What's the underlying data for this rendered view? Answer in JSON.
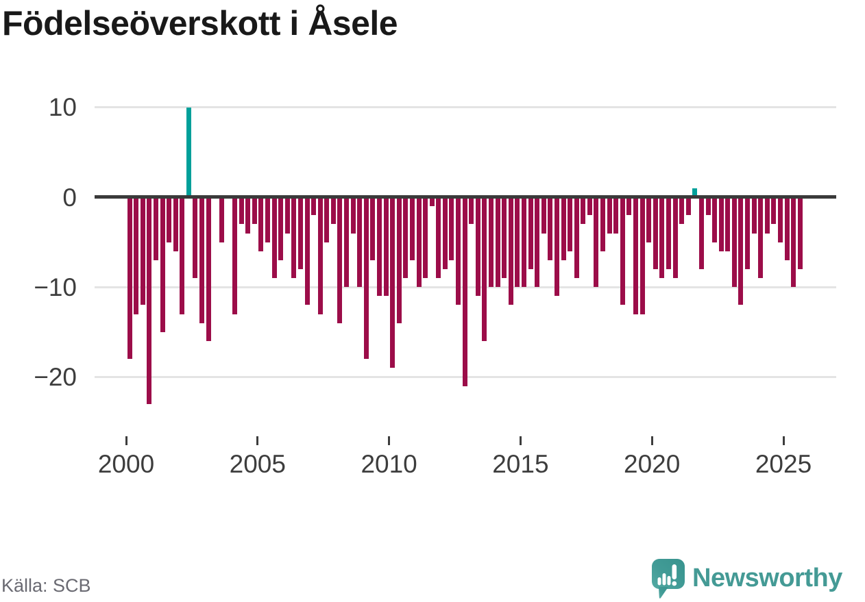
{
  "title": "Födelseöverskott i Åsele",
  "source": "Källa: SCB",
  "branding": {
    "name": "Newsworthy",
    "icon": "newsworthy-speech-bubble-chart-icon"
  },
  "chart_data": {
    "type": "bar",
    "title": "Födelseöverskott i Åsele",
    "xlabel": "",
    "ylabel": "",
    "period": "quarterly",
    "x_start": "2000-Q1",
    "x_end": "2025-Q3",
    "x_tick_years": [
      2000,
      2005,
      2010,
      2015,
      2020,
      2025
    ],
    "x_tick_labels": [
      "2000",
      "2005",
      "2010",
      "2015",
      "2020",
      "2025"
    ],
    "y_tick_values": [
      10,
      0,
      -10,
      -20
    ],
    "y_tick_labels": [
      "10",
      "0",
      "−10",
      "−20"
    ],
    "ylim": [
      -24.5,
      11.5
    ],
    "grid": "horizontal",
    "legend": "none",
    "colors": {
      "negative": "#9c0d49",
      "positive": "#00a09a"
    },
    "series": [
      {
        "name": "Födelseöverskott",
        "values": [
          -18,
          -13,
          -12,
          -23,
          -7,
          -15,
          -5,
          -6,
          -13,
          10,
          -9,
          -14,
          -16,
          0,
          -5,
          0,
          -13,
          -3,
          -4,
          -3,
          -6,
          -5,
          -9,
          -7,
          -4,
          -9,
          -8,
          -12,
          -2,
          -13,
          -5,
          -3,
          -14,
          -10,
          -4,
          -10,
          -18,
          -7,
          -11,
          -11,
          -19,
          -14,
          -9,
          -7,
          -10,
          -9,
          -1,
          -9,
          -8,
          -7,
          -12,
          -21,
          -3,
          -11,
          -16,
          -10,
          -10,
          -9,
          -12,
          -10,
          -10,
          -8,
          -10,
          -4,
          -7,
          -11,
          -7,
          -6,
          -9,
          -3,
          -2,
          -10,
          -6,
          -4,
          -4,
          -12,
          -2,
          -13,
          -13,
          -5,
          -8,
          -9,
          -8,
          -9,
          -3,
          -2,
          1,
          -8,
          -2,
          -5,
          -6,
          -6,
          -10,
          -12,
          -8,
          -4,
          -9,
          -4,
          -3,
          -5,
          -7,
          -10,
          -8
        ]
      }
    ]
  }
}
